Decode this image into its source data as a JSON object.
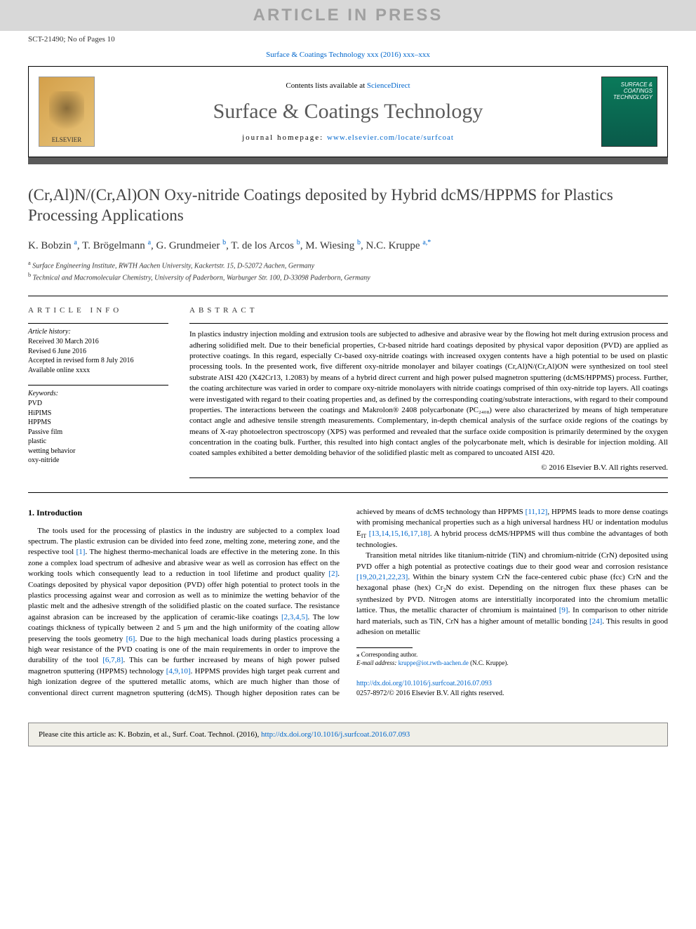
{
  "watermark": "ARTICLE IN PRESS",
  "page_id": "SCT-21490; No of Pages 10",
  "journal_ref_link": "Surface & Coatings Technology xxx (2016) xxx–xxx",
  "header": {
    "contents_prefix": "Contents lists available at ",
    "contents_link": "ScienceDirect",
    "journal_name": "Surface & Coatings Technology",
    "homepage_prefix": "journal homepage: ",
    "homepage_url": "www.elsevier.com/locate/surfcoat",
    "publisher_logo_text": "ELSEVIER",
    "cover_text": "SURFACE & COATINGS TECHNOLOGY"
  },
  "title": "(Cr,Al)N/(Cr,Al)ON Oxy-nitride Coatings deposited by Hybrid dcMS/HPPMS for Plastics Processing Applications",
  "authors_html": "K. Bobzin <sup>a</sup>, T. Brögelmann <sup>a</sup>, G. Grundmeier <sup>b</sup>, T. de los Arcos <sup>b</sup>, M. Wiesing <sup>b</sup>, N.C. Kruppe <sup>a,*</sup>",
  "affiliations": [
    {
      "sup": "a",
      "text": "Surface Engineering Institute, RWTH Aachen University, Kackertstr. 15, D-52072 Aachen, Germany"
    },
    {
      "sup": "b",
      "text": "Technical and Macromolecular Chemistry, University of Paderborn, Warburger Str. 100, D-33098 Paderborn, Germany"
    }
  ],
  "article_info_label": "article info",
  "abstract_label": "abstract",
  "history": {
    "title": "Article history:",
    "lines": "Received 30 March 2016\nRevised 6 June 2016\nAccepted in revised form 8 July 2016\nAvailable online xxxx"
  },
  "keywords": {
    "title": "Keywords:",
    "lines": "PVD\nHiPIMS\nHPPMS\nPassive film\nplastic\nwetting behavior\noxy-nitride"
  },
  "abstract": "In plastics industry injection molding and extrusion tools are subjected to adhesive and abrasive wear by the flowing hot melt during extrusion process and adhering solidified melt. Due to their beneficial properties, Cr-based nitride hard coatings deposited by physical vapor deposition (PVD) are applied as protective coatings. In this regard, especially Cr-based oxy-nitride coatings with increased oxygen contents have a high potential to be used on plastic processing tools. In the presented work, five different oxy-nitride monolayer and bilayer coatings (Cr,Al)N/(Cr,Al)ON were synthesized on tool steel substrate AISI 420 (X42Cr13, 1.2083) by means of a hybrid direct current and high power pulsed magnetron sputtering (dcMS/HPPMS) process. Further, the coating architecture was varied in order to compare oxy-nitride monolayers with nitride coatings comprised of thin oxy-nitride top layers. All coatings were investigated with regard to their coating properties and, as defined by the corresponding coating/substrate interactions, with regard to their compound properties. The interactions between the coatings and Makrolon® 2408 polycarbonate (PC₂₄₀₈) were also characterized by means of high temperature contact angle and adhesive tensile strength measurements. Complementary, in-depth chemical analysis of the surface oxide regions of the coatings by means of X-ray photoelectron spectroscopy (XPS) was performed and revealed that the surface oxide composition is primarily determined by the oxygen concentration in the coating bulk. Further, this resulted into high contact angles of the polycarbonate melt, which is desirable for injection molding. All coated samples exhibited a better demolding behavior of the solidified plastic melt as compared to uncoated AISI 420.",
  "copyright": "© 2016 Elsevier B.V. All rights reserved.",
  "intro_heading": "1. Introduction",
  "intro_para1_html": "The tools used for the processing of plastics in the industry are subjected to a complex load spectrum. The plastic extrusion can be divided into feed zone, melting zone, metering zone, and the respective tool <span class=\"ref-link\">[1]</span>. The highest thermo-mechanical loads are effective in the metering zone. In this zone a complex load spectrum of adhesive and abrasive wear as well as corrosion has effect on the working tools which consequently lead to a reduction in tool lifetime and product quality <span class=\"ref-link\">[2]</span>. Coatings deposited by physical vapor deposition (PVD) offer high potential to protect tools in the plastics processing against wear and corrosion as well as to minimize the wetting behavior of the plastic melt and the adhesive strength of the solidified plastic on the coated surface. The resistance against abrasion can be increased by the application of ceramic-like coatings <span class=\"ref-link\">[2,3,4,5]</span>. The low coatings thickness of typically between 2 and 5 μm and the high uniformity of the coating allow preserving the tools geometry <span class=\"ref-link\">[6]</span>. Due to the high mechanical loads during plastics processing a high wear resistance of the PVD coating is one of the main requirements in order to improve the durability of the tool <span class=\"ref-link\">[6,7,8]</span>. This can be further increased by means of high power pulsed magnetron sputtering (HPPMS) technology <span class=\"ref-link\">[4,9,10]</span>. HPPMS provides high target peak current and high ionization degree of the sputtered metallic atoms, which are much higher than those of conventional direct current magnetron sputtering (dcMS). Though higher deposition rates can be achieved by means of dcMS technology than HPPMS <span class=\"ref-link\">[11,12]</span>, HPPMS leads to more dense coatings with promising mechanical properties such as a high universal hardness HU or indentation modulus E<sub>IT</sub> <span class=\"ref-link\">[13,14,15,16,17,18]</span>. A hybrid process dcMS/HPPMS will thus combine the advantages of both technologies.",
  "intro_para2_html": "Transition metal nitrides like titanium-nitride (TiN) and chromium-nitride (CrN) deposited using PVD offer a high potential as protective coatings due to their good wear and corrosion resistance <span class=\"ref-link\">[19,20,21,22,23]</span>. Within the binary system CrN the face-centered cubic phase (fcc) CrN and the hexagonal phase (hex) Cr<sub>2</sub>N do exist. Depending on the nitrogen flux these phases can be synthesized by PVD. Nitrogen atoms are interstitially incorporated into the chromium metallic lattice. Thus, the metallic character of chromium is maintained <span class=\"ref-link\">[9]</span>. In comparison to other nitride hard materials, such as TiN, CrN has a higher amount of metallic bonding <span class=\"ref-link\">[24]</span>. This results in good adhesion on metallic",
  "footnote": {
    "marker": "⁎ Corresponding author.",
    "email_label": "E-mail address:",
    "email": "kruppe@iot.rwth-aachen.de",
    "email_suffix": "(N.C. Kruppe)."
  },
  "doi": {
    "url": "http://dx.doi.org/10.1016/j.surfcoat.2016.07.093",
    "issn_line": "0257-8972/© 2016 Elsevier B.V. All rights reserved."
  },
  "cite_box_prefix": "Please cite this article as: K. Bobzin, et al., Surf. Coat. Technol. (2016), ",
  "cite_box_url": "http://dx.doi.org/10.1016/j.surfcoat.2016.07.093",
  "colors": {
    "link": "#0066cc",
    "title_gray": "#414141",
    "accent_bar": "#5a5a5a",
    "cite_bg": "#f0efe8"
  }
}
